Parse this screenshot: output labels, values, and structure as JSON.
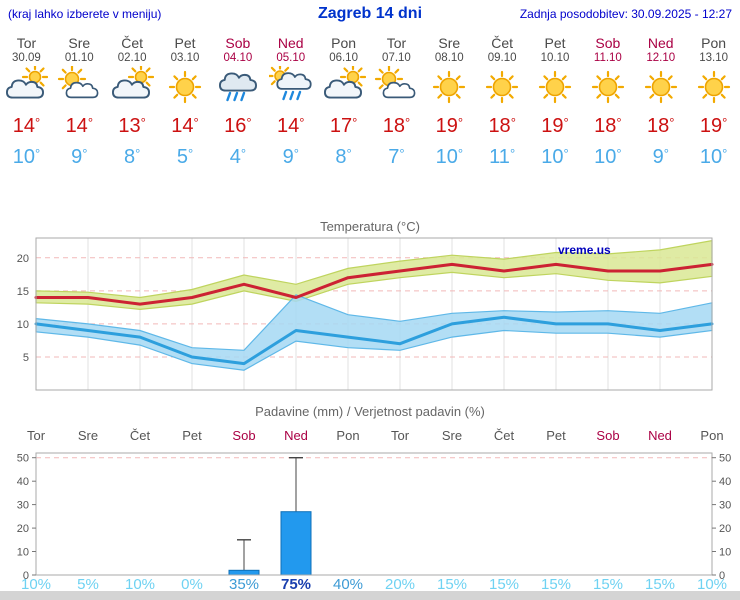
{
  "header": {
    "left_note": "(kraj lahko izberete v meniju)",
    "title": "Zagreb 14 dni",
    "updated": "Zadnja posodobitev: 30.09.2025 - 12:27"
  },
  "colors": {
    "header_blue": "#0000cc",
    "title_blue": "#0033cc",
    "weekday_text": "#4a4a4a",
    "weekend_text": "#aa0044",
    "temp_high": "#cc1111",
    "temp_low": "#4aaae8",
    "prob_low": "#6fd2f2",
    "prob_mid": "#3d9bd5",
    "prob_high": "#1a3fae",
    "footer_gray": "#d4d4d4"
  },
  "strip": {
    "degree_symbol": "°",
    "days": [
      {
        "name": "Tor",
        "date": "30.09",
        "icon": "mostly-cloudy",
        "high": "14",
        "low": "10",
        "weekend": false
      },
      {
        "name": "Sre",
        "date": "01.10",
        "icon": "partly-sunny",
        "high": "14",
        "low": "9",
        "weekend": false
      },
      {
        "name": "Čet",
        "date": "02.10",
        "icon": "mostly-cloudy",
        "high": "13",
        "low": "8",
        "weekend": false
      },
      {
        "name": "Pet",
        "date": "03.10",
        "icon": "sunny",
        "high": "14",
        "low": "5",
        "weekend": false
      },
      {
        "name": "Sob",
        "date": "04.10",
        "icon": "rain",
        "high": "16",
        "low": "4",
        "weekend": true
      },
      {
        "name": "Ned",
        "date": "05.10",
        "icon": "rain-sun",
        "high": "14",
        "low": "9",
        "weekend": true
      },
      {
        "name": "Pon",
        "date": "06.10",
        "icon": "mostly-cloudy",
        "high": "17",
        "low": "8",
        "weekend": false
      },
      {
        "name": "Tor",
        "date": "07.10",
        "icon": "partly-sunny",
        "high": "18",
        "low": "7",
        "weekend": false
      },
      {
        "name": "Sre",
        "date": "08.10",
        "icon": "sunny",
        "high": "19",
        "low": "10",
        "weekend": false
      },
      {
        "name": "Čet",
        "date": "09.10",
        "icon": "sunny",
        "high": "18",
        "low": "11",
        "weekend": false
      },
      {
        "name": "Pet",
        "date": "10.10",
        "icon": "sunny",
        "high": "19",
        "low": "10",
        "weekend": false
      },
      {
        "name": "Sob",
        "date": "11.10",
        "icon": "sunny",
        "high": "18",
        "low": "10",
        "weekend": true
      },
      {
        "name": "Ned",
        "date": "12.10",
        "icon": "sunny",
        "high": "18",
        "low": "9",
        "weekend": true
      },
      {
        "name": "Pon",
        "date": "13.10",
        "icon": "sunny",
        "high": "19",
        "low": "10",
        "weekend": false
      }
    ]
  },
  "chart_data": [
    {
      "type": "area",
      "title": "Temperatura (°C)",
      "watermark": "vreme.us",
      "x_labels": [
        "Tor 30.09",
        "Sre 01.10",
        "Čet 02.10",
        "Pet 03.10",
        "Sob 04.10",
        "Ned 05.10",
        "Pon 06.10",
        "Tor 07.10",
        "Sre 08.10",
        "Čet 09.10",
        "Pet 10.10",
        "Sob 11.10",
        "Ned 12.10",
        "Pon 13.10"
      ],
      "ylim": [
        0,
        23
      ],
      "yticks": [
        5,
        10,
        15,
        20
      ],
      "series": [
        {
          "name": "max-temp",
          "color": "#cc2233",
          "values": [
            14,
            14,
            13,
            14,
            16,
            14,
            17,
            18,
            19,
            18,
            19,
            18,
            18,
            19
          ]
        },
        {
          "name": "min-temp",
          "color": "#2d9fdd",
          "values": [
            10,
            9,
            8,
            5,
            4,
            9,
            8,
            7,
            10,
            11,
            10,
            10,
            9,
            10
          ]
        }
      ],
      "bands": [
        {
          "name": "max-temp-range",
          "fill": "#d9e794",
          "edge": "#bfd45e",
          "upper": [
            15,
            14.8,
            14,
            15.2,
            17.4,
            16,
            18.4,
            19.5,
            20.4,
            19.8,
            20.8,
            20.6,
            21.2,
            22.6
          ],
          "lower": [
            13.2,
            13,
            12.2,
            13,
            15,
            13.4,
            16,
            17,
            17.8,
            17,
            17.6,
            16.6,
            16.2,
            17.2
          ]
        },
        {
          "name": "min-temp-range",
          "fill": "#a5d8f3",
          "edge": "#5fb8e8",
          "upper": [
            10.8,
            10,
            9,
            6.4,
            6,
            14.4,
            11.4,
            10.4,
            11.6,
            12,
            11.8,
            12,
            11.6,
            13.2
          ],
          "lower": [
            8.8,
            8,
            6.8,
            4,
            3,
            7.4,
            6.4,
            6,
            8,
            9,
            8.6,
            8.6,
            8,
            9
          ]
        }
      ]
    },
    {
      "type": "bar",
      "title": "Padavine (mm) / Verjetnost padavin (%)",
      "categories": [
        "Tor",
        "Sre",
        "Čet",
        "Pet",
        "Sob",
        "Ned",
        "Pon",
        "Tor",
        "Sre",
        "Čet",
        "Pet",
        "Sob",
        "Ned",
        "Pon"
      ],
      "values_mm": [
        0,
        0,
        0,
        0,
        2,
        27,
        0,
        0,
        0,
        0,
        0,
        0,
        0,
        0
      ],
      "whisker_max_mm": [
        0,
        0,
        0,
        0,
        15,
        50,
        0,
        0,
        0,
        0,
        0,
        0,
        0,
        0
      ],
      "probabilities": [
        "10%",
        "5%",
        "10%",
        "0%",
        "35%",
        "75%",
        "40%",
        "20%",
        "15%",
        "15%",
        "15%",
        "15%",
        "15%",
        "10%"
      ],
      "ylim": [
        0,
        52
      ],
      "yticks": [
        0,
        10,
        20,
        30,
        40,
        50
      ],
      "bar_color": "#2299ee"
    }
  ]
}
